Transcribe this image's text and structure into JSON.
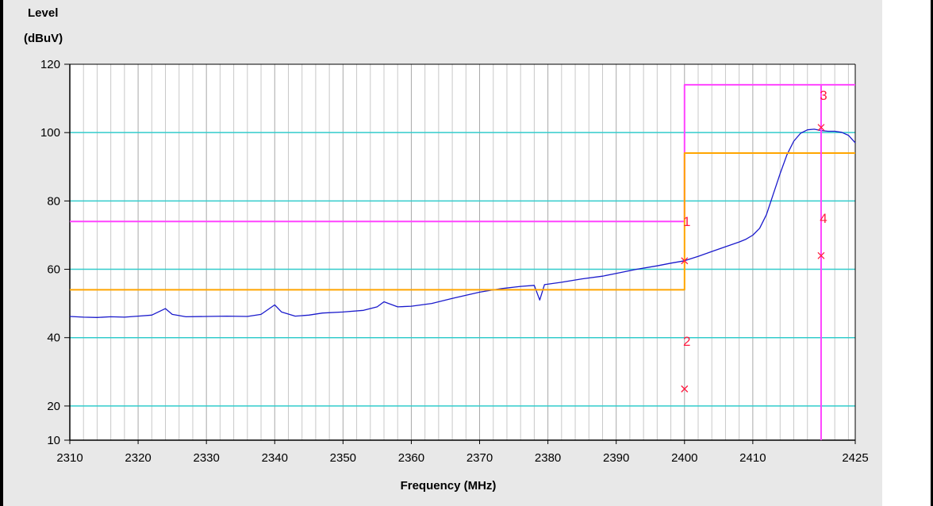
{
  "chart_data": {
    "type": "line",
    "title": "",
    "ylabel_line1": "Level",
    "ylabel_line2": "(dBuV)",
    "xlabel": "Frequency (MHz)",
    "xlim": [
      2310,
      2425
    ],
    "ylim": [
      10,
      120
    ],
    "x_ticks": [
      2310,
      2320,
      2330,
      2340,
      2350,
      2360,
      2370,
      2380,
      2390,
      2400,
      2410,
      2425
    ],
    "y_ticks": [
      10,
      20,
      40,
      60,
      80,
      100,
      120
    ],
    "grid": true,
    "colors": {
      "background": "#e8e8e8",
      "plot_background": "#ffffff",
      "grid_minor": "#c8c8c8",
      "grid_major": "#a8a8a8",
      "grid_horizontal": "#33cccc",
      "trace": "#1a1acc",
      "peak_limit": "#ff44ff",
      "average_limit": "#ffa500",
      "marker": "#ff1a40"
    },
    "series": [
      {
        "kind": "trace",
        "points": [
          [
            2310,
            46.2
          ],
          [
            2312,
            46.0
          ],
          [
            2314,
            45.9
          ],
          [
            2316,
            46.1
          ],
          [
            2318,
            46.0
          ],
          [
            2320,
            46.3
          ],
          [
            2322,
            46.6
          ],
          [
            2324,
            48.5
          ],
          [
            2325,
            46.8
          ],
          [
            2327,
            46.1
          ],
          [
            2330,
            46.2
          ],
          [
            2333,
            46.3
          ],
          [
            2336,
            46.2
          ],
          [
            2338,
            46.8
          ],
          [
            2340,
            49.6
          ],
          [
            2341,
            47.5
          ],
          [
            2343,
            46.3
          ],
          [
            2345,
            46.6
          ],
          [
            2347,
            47.2
          ],
          [
            2350,
            47.5
          ],
          [
            2353,
            48.0
          ],
          [
            2355,
            49.0
          ],
          [
            2356,
            50.5
          ],
          [
            2358,
            49.0
          ],
          [
            2360,
            49.2
          ],
          [
            2363,
            50.0
          ],
          [
            2366,
            51.5
          ],
          [
            2370,
            53.3
          ],
          [
            2373,
            54.3
          ],
          [
            2376,
            55.0
          ],
          [
            2378,
            55.3
          ],
          [
            2378.8,
            51.0
          ],
          [
            2379.5,
            55.5
          ],
          [
            2382,
            56.2
          ],
          [
            2385,
            57.2
          ],
          [
            2388,
            58.0
          ],
          [
            2390,
            58.8
          ],
          [
            2393,
            60.0
          ],
          [
            2396,
            61.0
          ],
          [
            2398,
            61.8
          ],
          [
            2400,
            62.5
          ],
          [
            2402,
            63.8
          ],
          [
            2404,
            65.2
          ],
          [
            2406,
            66.6
          ],
          [
            2408,
            68.0
          ],
          [
            2409,
            68.8
          ],
          [
            2410,
            70.0
          ],
          [
            2411,
            72.0
          ],
          [
            2412,
            76.0
          ],
          [
            2413,
            82.0
          ],
          [
            2414,
            88.0
          ],
          [
            2415,
            93.5
          ],
          [
            2416,
            97.5
          ],
          [
            2417,
            99.8
          ],
          [
            2418,
            100.8
          ],
          [
            2419,
            101.0
          ],
          [
            2420,
            100.6
          ],
          [
            2421,
            100.4
          ],
          [
            2422,
            100.4
          ],
          [
            2423,
            100.1
          ],
          [
            2424,
            99.2
          ],
          [
            2425,
            97.0
          ]
        ]
      },
      {
        "kind": "peak-limit",
        "points": [
          [
            2310,
            74
          ],
          [
            2400,
            74
          ],
          [
            2400,
            114
          ],
          [
            2425,
            114
          ]
        ]
      },
      {
        "kind": "average-limit",
        "points": [
          [
            2310,
            54
          ],
          [
            2400,
            54
          ],
          [
            2400,
            94
          ],
          [
            2425,
            94
          ]
        ]
      }
    ],
    "marker_line_x": 2420,
    "markers": [
      {
        "label": "1",
        "x": 2400,
        "y": 62.5,
        "label_y": 74
      },
      {
        "label": "2",
        "x": 2400,
        "y": 25,
        "label_y": 39
      },
      {
        "label": "3",
        "x": 2420,
        "y": 101.5,
        "label_y": 111
      },
      {
        "label": "4",
        "x": 2420,
        "y": 64,
        "label_y": 75
      }
    ]
  }
}
